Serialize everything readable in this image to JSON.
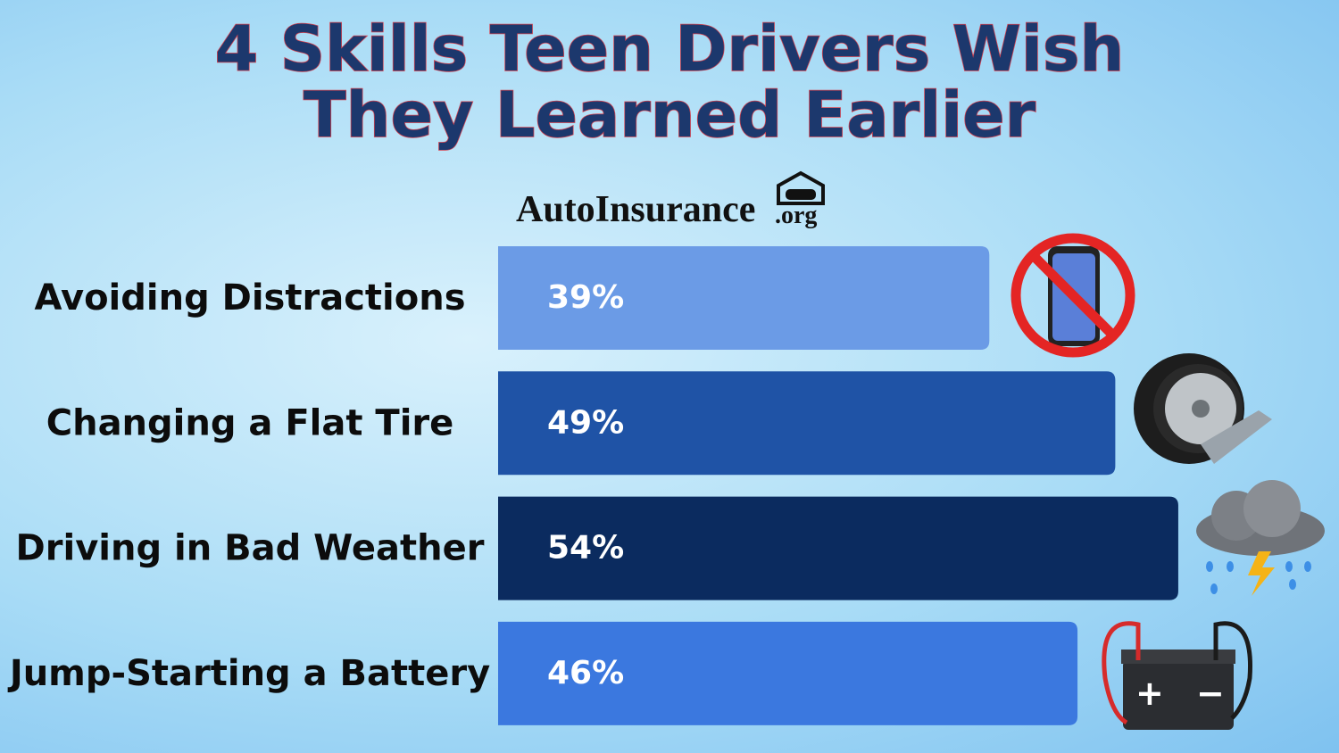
{
  "chart_data": {
    "type": "bar",
    "orientation": "horizontal",
    "title": "4 Skills Teen Drivers Wish They Learned Earlier",
    "brand": "AutoInsurance",
    "brand_suffix": ".org",
    "categories": [
      "Avoiding Distractions",
      "Changing a Flat Tire",
      "Driving in Bad Weather",
      "Jump-Starting a Battery"
    ],
    "values": [
      39,
      49,
      54,
      46
    ],
    "value_labels": [
      "39%",
      "49%",
      "54%",
      "46%"
    ],
    "colors": [
      "#6b9be6",
      "#1f53a6",
      "#0b2b5f",
      "#3b78df"
    ]
  }
}
